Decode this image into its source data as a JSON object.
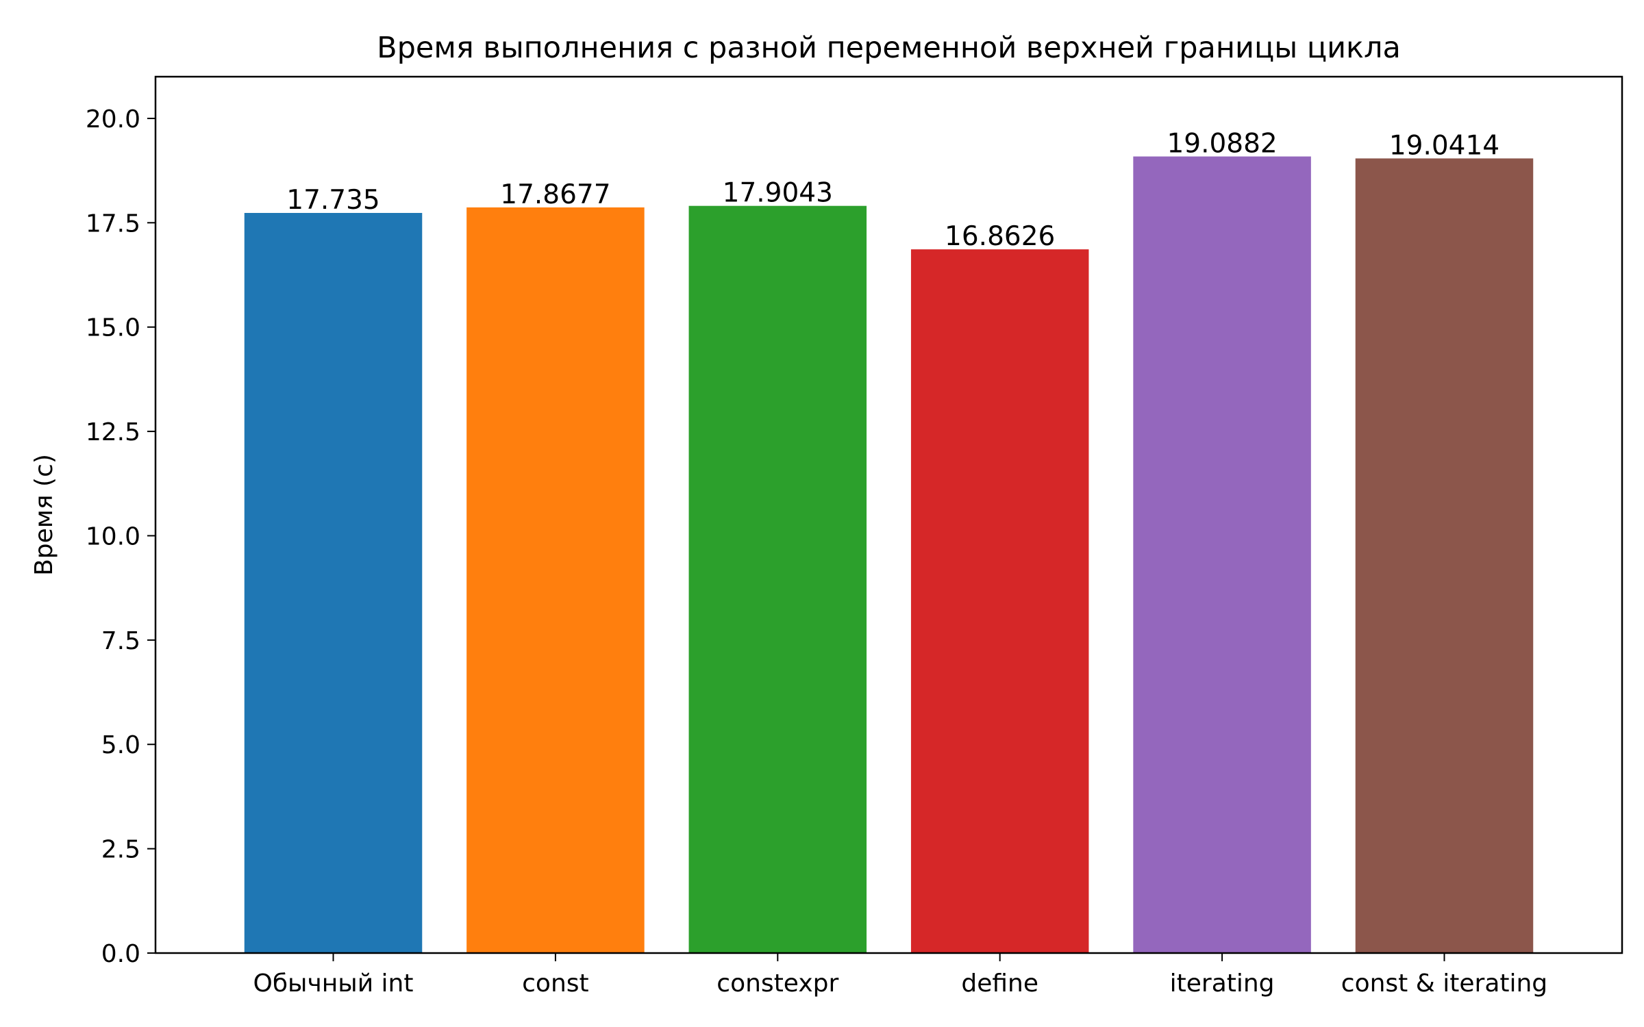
{
  "chart_data": {
    "type": "bar",
    "title": "Время выполнения с разной переменной верхней границы цикла",
    "xlabel": "",
    "ylabel": "Время (с)",
    "categories": [
      "Обычный int",
      "const",
      "constexpr",
      "define",
      "iterating",
      "const & iterating"
    ],
    "values": [
      17.735,
      17.8677,
      17.9043,
      16.8626,
      19.0882,
      19.0414
    ],
    "value_labels": [
      "17.735",
      "17.8677",
      "17.9043",
      "16.8626",
      "19.0882",
      "19.0414"
    ],
    "colors": [
      "#1f77b4",
      "#ff7f0e",
      "#2ca02c",
      "#d62728",
      "#9467bd",
      "#8c564b"
    ],
    "ylim": [
      0,
      21
    ],
    "yticks": [
      0,
      2.5,
      5,
      7.5,
      10,
      12.5,
      15,
      17.5,
      20
    ],
    "ytick_labels": [
      "0.0",
      "2.5",
      "5.0",
      "7.5",
      "10.0",
      "12.5",
      "15.0",
      "17.5",
      "20.0"
    ],
    "grid": false,
    "legend": "none"
  }
}
